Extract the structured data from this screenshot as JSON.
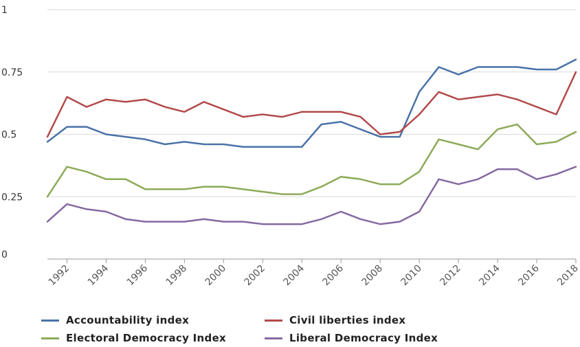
{
  "chart_data": {
    "type": "line",
    "title": "",
    "xlabel": "",
    "ylabel": "",
    "x": [
      1991,
      1992,
      1993,
      1994,
      1995,
      1996,
      1997,
      1998,
      1999,
      2000,
      2001,
      2002,
      2003,
      2004,
      2005,
      2006,
      2007,
      2008,
      2009,
      2010,
      2011,
      2012,
      2013,
      2014,
      2015,
      2016,
      2017,
      2018
    ],
    "xticks": [
      "1992",
      "1994",
      "1996",
      "1998",
      "2000",
      "2002",
      "2004",
      "2006",
      "2008",
      "2010",
      "2012",
      "2014",
      "2016",
      "2018"
    ],
    "yticks": [
      "0",
      "0.25",
      "0.5",
      "0.75",
      "1"
    ],
    "xlim": [
      1991,
      2018
    ],
    "ylim": [
      0,
      1
    ],
    "grid": true,
    "legend_position": "bottom",
    "series": [
      {
        "name": "Accountability index",
        "color": "#4a72a8",
        "values": [
          0.47,
          0.53,
          0.53,
          0.5,
          0.49,
          0.48,
          0.46,
          0.47,
          0.46,
          0.46,
          0.45,
          0.45,
          0.45,
          0.45,
          0.54,
          0.55,
          0.52,
          0.49,
          0.49,
          0.67,
          0.77,
          0.74,
          0.77,
          0.77,
          0.77,
          0.76,
          0.76,
          0.8
        ]
      },
      {
        "name": "Civil liberties index",
        "color": "#b24a4a",
        "values": [
          0.49,
          0.65,
          0.61,
          0.64,
          0.63,
          0.64,
          0.61,
          0.59,
          0.63,
          0.6,
          0.57,
          0.58,
          0.57,
          0.59,
          0.59,
          0.59,
          0.57,
          0.5,
          0.51,
          0.58,
          0.67,
          0.64,
          0.65,
          0.66,
          0.64,
          0.61,
          0.58,
          0.75
        ]
      },
      {
        "name": "Electoral Democracy Index",
        "color": "#8daa57",
        "values": [
          0.25,
          0.37,
          0.35,
          0.32,
          0.32,
          0.28,
          0.28,
          0.28,
          0.29,
          0.29,
          0.28,
          0.27,
          0.26,
          0.26,
          0.29,
          0.33,
          0.32,
          0.3,
          0.3,
          0.35,
          0.48,
          0.46,
          0.44,
          0.52,
          0.54,
          0.46,
          0.47,
          0.51
        ]
      },
      {
        "name": "Liberal Democracy Index",
        "color": "#8469a0",
        "values": [
          0.15,
          0.22,
          0.2,
          0.19,
          0.16,
          0.15,
          0.15,
          0.15,
          0.16,
          0.15,
          0.15,
          0.14,
          0.14,
          0.14,
          0.16,
          0.19,
          0.16,
          0.14,
          0.15,
          0.19,
          0.32,
          0.3,
          0.32,
          0.36,
          0.36,
          0.32,
          0.34,
          0.37
        ]
      }
    ]
  }
}
